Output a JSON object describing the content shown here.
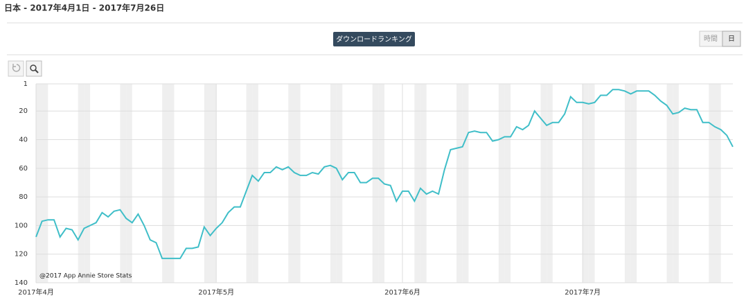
{
  "header": {
    "title": "日本 - 2017年4月1日 - 2017年7月26日"
  },
  "controls": {
    "ranking_button": "ダウンロードランキング",
    "granularity": [
      "時間",
      "日"
    ]
  },
  "chart_data": {
    "type": "line",
    "watermark": "@2017 App Annie Store Stats",
    "x": [
      "2017-04-01",
      "2017-04-02",
      "2017-04-03",
      "2017-04-04",
      "2017-04-05",
      "2017-04-06",
      "2017-04-07",
      "2017-04-08",
      "2017-04-09",
      "2017-04-10",
      "2017-04-11",
      "2017-04-12",
      "2017-04-13",
      "2017-04-14",
      "2017-04-15",
      "2017-04-16",
      "2017-04-17",
      "2017-04-18",
      "2017-04-19",
      "2017-04-20",
      "2017-04-21",
      "2017-04-22",
      "2017-04-23",
      "2017-04-24",
      "2017-04-25",
      "2017-04-26",
      "2017-04-27",
      "2017-04-28",
      "2017-04-29",
      "2017-04-30",
      "2017-05-01",
      "2017-05-02",
      "2017-05-03",
      "2017-05-04",
      "2017-05-05",
      "2017-05-06",
      "2017-05-07",
      "2017-05-08",
      "2017-05-09",
      "2017-05-10",
      "2017-05-11",
      "2017-05-12",
      "2017-05-13",
      "2017-05-14",
      "2017-05-15",
      "2017-05-16",
      "2017-05-17",
      "2017-05-18",
      "2017-05-19",
      "2017-05-20",
      "2017-05-21",
      "2017-05-22",
      "2017-05-23",
      "2017-05-24",
      "2017-05-25",
      "2017-05-26",
      "2017-05-27",
      "2017-05-28",
      "2017-05-29",
      "2017-05-30",
      "2017-05-31",
      "2017-06-01",
      "2017-06-02",
      "2017-06-03",
      "2017-06-04",
      "2017-06-05",
      "2017-06-06",
      "2017-06-07",
      "2017-06-08",
      "2017-06-09",
      "2017-06-10",
      "2017-06-11",
      "2017-06-12",
      "2017-06-13",
      "2017-06-14",
      "2017-06-15",
      "2017-06-16",
      "2017-06-17",
      "2017-06-18",
      "2017-06-19",
      "2017-06-20",
      "2017-06-21",
      "2017-06-22",
      "2017-06-23",
      "2017-06-24",
      "2017-06-25",
      "2017-06-26",
      "2017-06-27",
      "2017-06-28",
      "2017-06-29",
      "2017-06-30",
      "2017-07-01",
      "2017-07-02",
      "2017-07-03",
      "2017-07-04",
      "2017-07-05",
      "2017-07-06",
      "2017-07-07",
      "2017-07-08",
      "2017-07-09",
      "2017-07-10",
      "2017-07-11",
      "2017-07-12",
      "2017-07-13",
      "2017-07-14",
      "2017-07-15",
      "2017-07-16",
      "2017-07-17",
      "2017-07-18",
      "2017-07-19",
      "2017-07-20",
      "2017-07-21",
      "2017-07-22",
      "2017-07-23",
      "2017-07-24",
      "2017-07-25",
      "2017-07-26"
    ],
    "series": [
      {
        "color": "#3fbec8",
        "values": [
          108,
          97,
          96,
          96,
          108,
          102,
          103,
          110,
          102,
          100,
          98,
          91,
          94,
          90,
          89,
          95,
          98,
          92,
          100,
          110,
          112,
          123,
          123,
          123,
          123,
          116,
          116,
          115,
          101,
          107,
          102,
          98,
          91,
          87,
          87,
          76,
          65,
          69,
          63,
          63,
          59,
          61,
          59,
          63,
          65,
          65,
          63,
          64,
          59,
          58,
          60,
          68,
          63,
          63,
          70,
          70,
          67,
          67,
          71,
          72,
          83,
          76,
          76,
          83,
          74,
          78,
          76,
          78,
          61,
          47,
          46,
          45,
          35,
          34,
          35,
          35,
          41,
          40,
          38,
          38,
          31,
          33,
          30,
          20,
          25,
          30,
          28,
          28,
          22,
          10,
          14,
          14,
          15,
          14,
          9,
          9,
          5,
          5,
          6,
          8,
          6,
          6,
          6,
          9,
          13,
          16,
          22,
          21,
          18,
          19,
          19,
          28,
          28,
          31,
          33,
          37,
          45
        ]
      }
    ],
    "xlim": [
      "2017-04-01",
      "2017-07-26"
    ],
    "xticks": [
      {
        "value": "2017-04-01",
        "label": "2017年4月"
      },
      {
        "value": "2017-05-01",
        "label": "2017年5月"
      },
      {
        "value": "2017-06-01",
        "label": "2017年6月"
      },
      {
        "value": "2017-07-01",
        "label": "2017年7月"
      }
    ],
    "ylim": [
      1,
      140
    ],
    "y_reversed": true,
    "yticks": [
      1,
      20,
      40,
      60,
      80,
      100,
      120,
      140
    ],
    "grid": true,
    "weekend_shading": true
  }
}
